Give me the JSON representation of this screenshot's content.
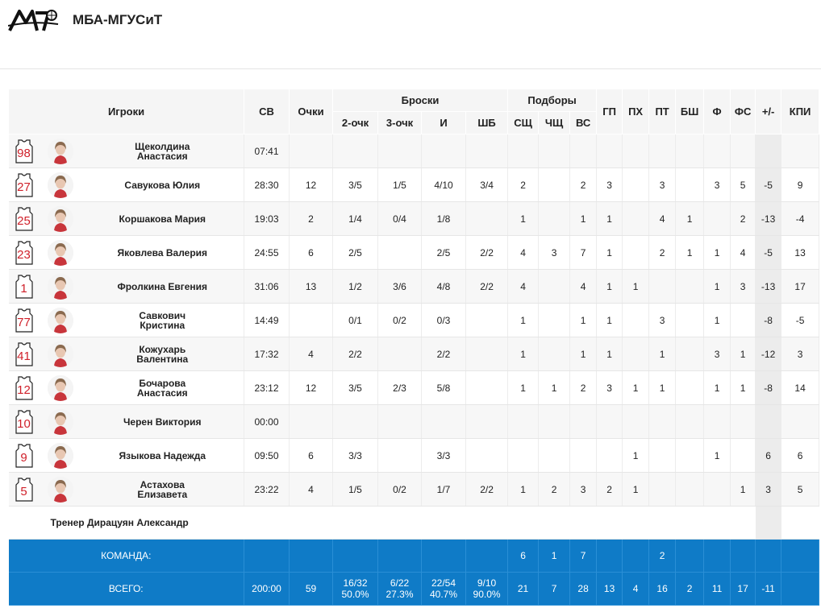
{
  "team": {
    "name": "МБА-МГУСиТ",
    "logo_icon": "mba-logo-icon"
  },
  "colors": {
    "accent": "#0f7bc7",
    "jersey_number": "#d0202a"
  },
  "headers": {
    "players": "Игроки",
    "sv": "СВ",
    "points": "Очки",
    "shots": "Броски",
    "two": "2-очк",
    "three": "3-очк",
    "ft": "И",
    "shb": "ШБ",
    "rebounds": "Подборы",
    "def": "СЩ",
    "off": "ЧЩ",
    "all": "ВС",
    "gp": "ГП",
    "ph": "ПХ",
    "pt": "ПТ",
    "bsh": "БШ",
    "f": "Ф",
    "fs": "ФС",
    "pm": "+/-",
    "kpi": "КПИ"
  },
  "players": [
    {
      "number": "98",
      "name": "Щеколдина Анастасия",
      "time": "07:41",
      "pts": "",
      "two": "",
      "three": "",
      "ft": "",
      "shb": "",
      "def": "",
      "off": "",
      "all": "",
      "gp": "",
      "ph": "",
      "pt": "",
      "bsh": "",
      "f": "",
      "fs": "",
      "pm": "",
      "kpi": ""
    },
    {
      "number": "27",
      "name": "Савукова Юлия",
      "time": "28:30",
      "pts": "12",
      "two": "3/5",
      "three": "1/5",
      "ft": "4/10",
      "shb": "3/4",
      "def": "2",
      "off": "",
      "all": "2",
      "gp": "3",
      "ph": "",
      "pt": "3",
      "bsh": "",
      "f": "3",
      "fs": "5",
      "pm": "-5",
      "kpi": "9"
    },
    {
      "number": "25",
      "name": "Коршакова Мария",
      "time": "19:03",
      "pts": "2",
      "two": "1/4",
      "three": "0/4",
      "ft": "1/8",
      "shb": "",
      "def": "1",
      "off": "",
      "all": "1",
      "gp": "1",
      "ph": "",
      "pt": "4",
      "bsh": "1",
      "f": "",
      "fs": "2",
      "pm": "-13",
      "kpi": "-4"
    },
    {
      "number": "23",
      "name": "Яковлева Валерия",
      "time": "24:55",
      "pts": "6",
      "two": "2/5",
      "three": "",
      "ft": "2/5",
      "shb": "2/2",
      "def": "4",
      "off": "3",
      "all": "7",
      "gp": "1",
      "ph": "",
      "pt": "2",
      "bsh": "1",
      "f": "1",
      "fs": "4",
      "pm": "-5",
      "kpi": "13"
    },
    {
      "number": "1",
      "name": "Фролкина Евгения",
      "time": "31:06",
      "pts": "13",
      "two": "1/2",
      "three": "3/6",
      "ft": "4/8",
      "shb": "2/2",
      "def": "4",
      "off": "",
      "all": "4",
      "gp": "1",
      "ph": "1",
      "pt": "",
      "bsh": "",
      "f": "1",
      "fs": "3",
      "pm": "-13",
      "kpi": "17"
    },
    {
      "number": "77",
      "name": "Савкович Кристина",
      "time": "14:49",
      "pts": "",
      "two": "0/1",
      "three": "0/2",
      "ft": "0/3",
      "shb": "",
      "def": "1",
      "off": "",
      "all": "1",
      "gp": "1",
      "ph": "",
      "pt": "3",
      "bsh": "",
      "f": "1",
      "fs": "",
      "pm": "-8",
      "kpi": "-5"
    },
    {
      "number": "41",
      "name": "Кожухарь Валентина",
      "time": "17:32",
      "pts": "4",
      "two": "2/2",
      "three": "",
      "ft": "2/2",
      "shb": "",
      "def": "1",
      "off": "",
      "all": "1",
      "gp": "1",
      "ph": "",
      "pt": "1",
      "bsh": "",
      "f": "3",
      "fs": "1",
      "pm": "-12",
      "kpi": "3"
    },
    {
      "number": "12",
      "name": "Бочарова Анастасия",
      "time": "23:12",
      "pts": "12",
      "two": "3/5",
      "three": "2/3",
      "ft": "5/8",
      "shb": "",
      "def": "1",
      "off": "1",
      "all": "2",
      "gp": "3",
      "ph": "1",
      "pt": "1",
      "bsh": "",
      "f": "1",
      "fs": "1",
      "pm": "-8",
      "kpi": "14"
    },
    {
      "number": "10",
      "name": "Черен Виктория",
      "time": "00:00",
      "pts": "",
      "two": "",
      "three": "",
      "ft": "",
      "shb": "",
      "def": "",
      "off": "",
      "all": "",
      "gp": "",
      "ph": "",
      "pt": "",
      "bsh": "",
      "f": "",
      "fs": "",
      "pm": "",
      "kpi": ""
    },
    {
      "number": "9",
      "name": "Языкова Надежда",
      "time": "09:50",
      "pts": "6",
      "two": "3/3",
      "three": "",
      "ft": "3/3",
      "shb": "",
      "def": "",
      "off": "",
      "all": "",
      "gp": "",
      "ph": "1",
      "pt": "",
      "bsh": "",
      "f": "1",
      "fs": "",
      "pm": "6",
      "kpi": "6"
    },
    {
      "number": "5",
      "name": "Астахова Елизавета",
      "time": "23:22",
      "pts": "4",
      "two": "1/5",
      "three": "0/2",
      "ft": "1/7",
      "shb": "2/2",
      "def": "1",
      "off": "2",
      "all": "3",
      "gp": "2",
      "ph": "1",
      "pt": "",
      "bsh": "",
      "f": "",
      "fs": "1",
      "pm": "3",
      "kpi": "5"
    }
  ],
  "coach": "Тренер Дирацуян Александр",
  "team_row": {
    "label": "КОМАНДА:",
    "def": "6",
    "off": "1",
    "all": "7",
    "pt": "2"
  },
  "total_row": {
    "label": "ВСЕГО:",
    "time": "200:00",
    "pts": "59",
    "two": "16/32",
    "two_pct": "50.0%",
    "three": "6/22",
    "three_pct": "27.3%",
    "ft": "22/54",
    "ft_pct": "40.7%",
    "shb": "9/10",
    "shb_pct": "90.0%",
    "def": "21",
    "off": "7",
    "all": "28",
    "gp": "13",
    "ph": "4",
    "pt": "16",
    "bsh": "2",
    "f": "11",
    "fs": "17",
    "pm": "-11",
    "kpi": ""
  }
}
